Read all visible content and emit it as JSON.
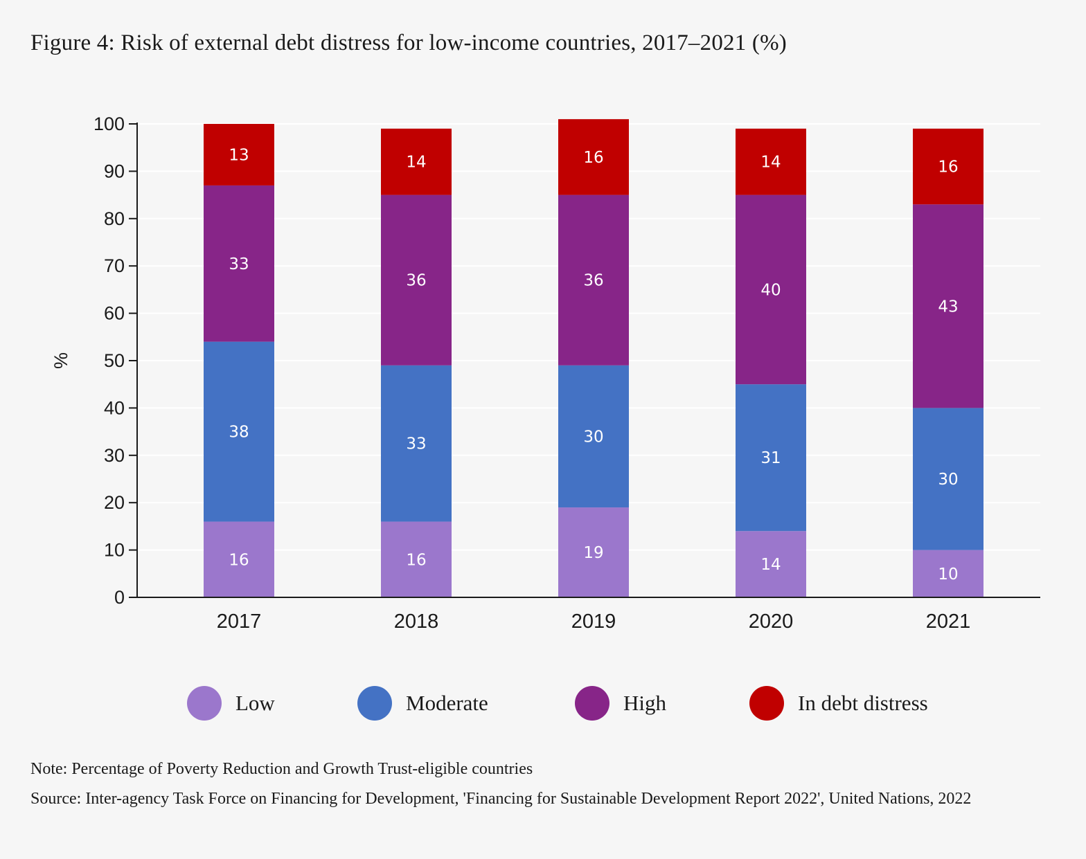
{
  "title": "Figure 4: Risk of external debt distress for low-income countries, 2017–2021 (%)",
  "chart_data": {
    "type": "bar",
    "stacked": true,
    "categories": [
      "2017",
      "2018",
      "2019",
      "2020",
      "2021"
    ],
    "series": [
      {
        "name": "Low",
        "color": "#9b77cc",
        "values": [
          16,
          16,
          19,
          14,
          10
        ]
      },
      {
        "name": "Moderate",
        "color": "#4472c4",
        "values": [
          38,
          33,
          30,
          31,
          30
        ]
      },
      {
        "name": "High",
        "color": "#872588",
        "values": [
          33,
          36,
          36,
          40,
          43
        ]
      },
      {
        "name": "In debt distress",
        "color": "#c00000",
        "values": [
          13,
          14,
          16,
          14,
          16
        ]
      }
    ],
    "ylabel": "%",
    "xlabel": "",
    "ylim": [
      0,
      100
    ],
    "yticks": [
      0,
      10,
      20,
      30,
      40,
      50,
      60,
      70,
      80,
      90,
      100
    ],
    "grid": true,
    "legend_position": "bottom"
  },
  "legend": [
    {
      "label": "Low",
      "color": "#9b77cc"
    },
    {
      "label": "Moderate",
      "color": "#4472c4"
    },
    {
      "label": "High",
      "color": "#872588"
    },
    {
      "label": "In debt distress",
      "color": "#c00000"
    }
  ],
  "note": "Note: Percentage of Poverty Reduction and Growth Trust-eligible countries",
  "source": "Source: Inter-agency Task Force on Financing for Development, 'Financing for Sustainable Development Report 2022', United Nations, 2022"
}
